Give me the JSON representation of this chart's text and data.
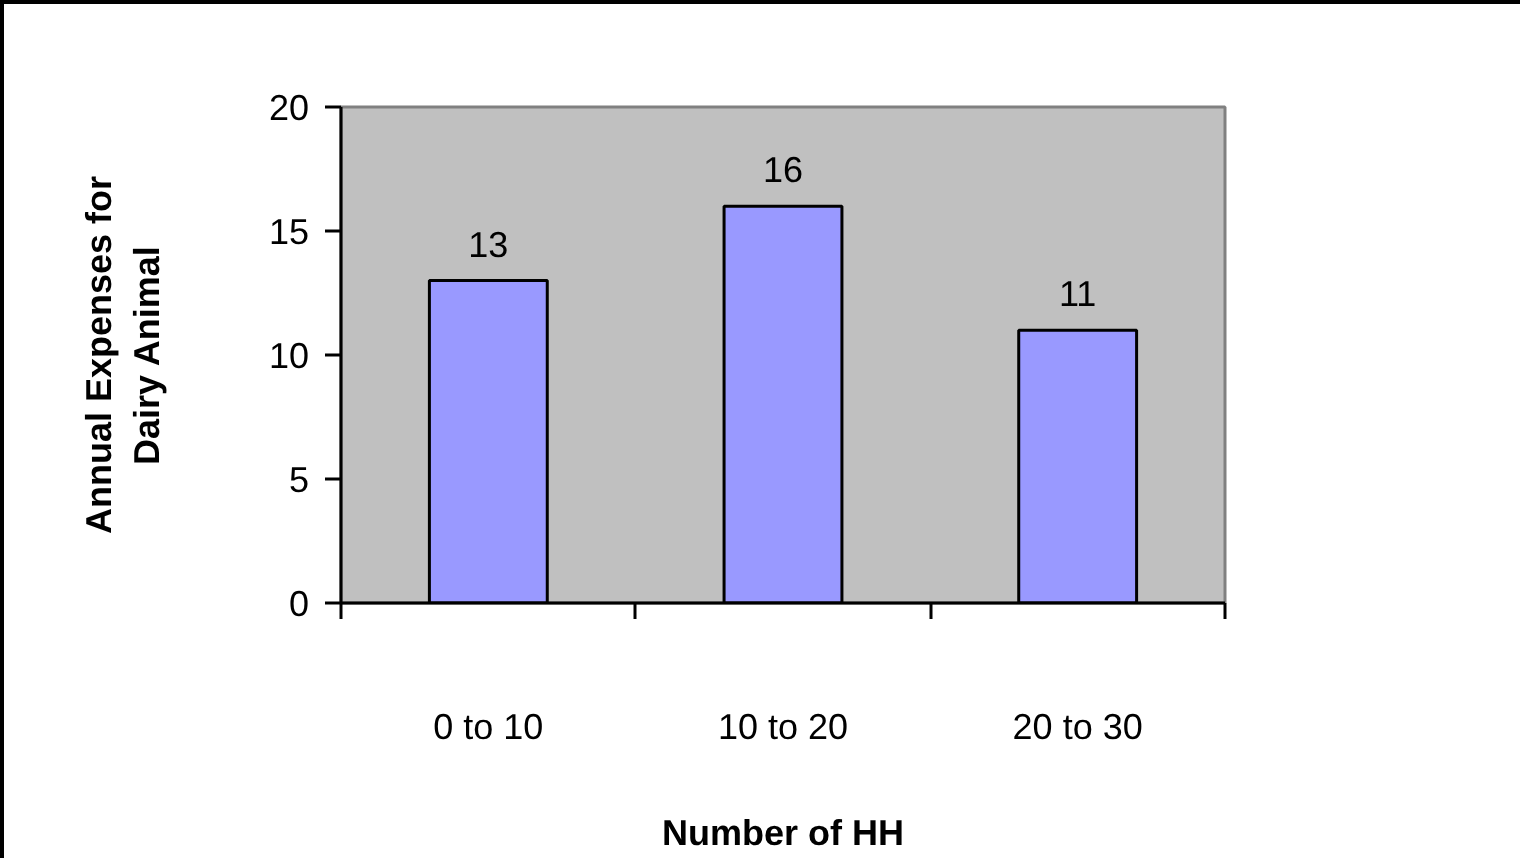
{
  "chart_data": {
    "type": "bar",
    "categories": [
      "0 to 10",
      "10 to 20",
      "20 to 30"
    ],
    "values": [
      13,
      16,
      11
    ],
    "color": "#9999ff",
    "xlabel": "Number of HH",
    "ylabel": "Annual Expenses for Dairy Animal",
    "ylim": [
      0,
      20
    ],
    "yticks": [
      0,
      5,
      10,
      15,
      20
    ],
    "data_labels": true
  }
}
